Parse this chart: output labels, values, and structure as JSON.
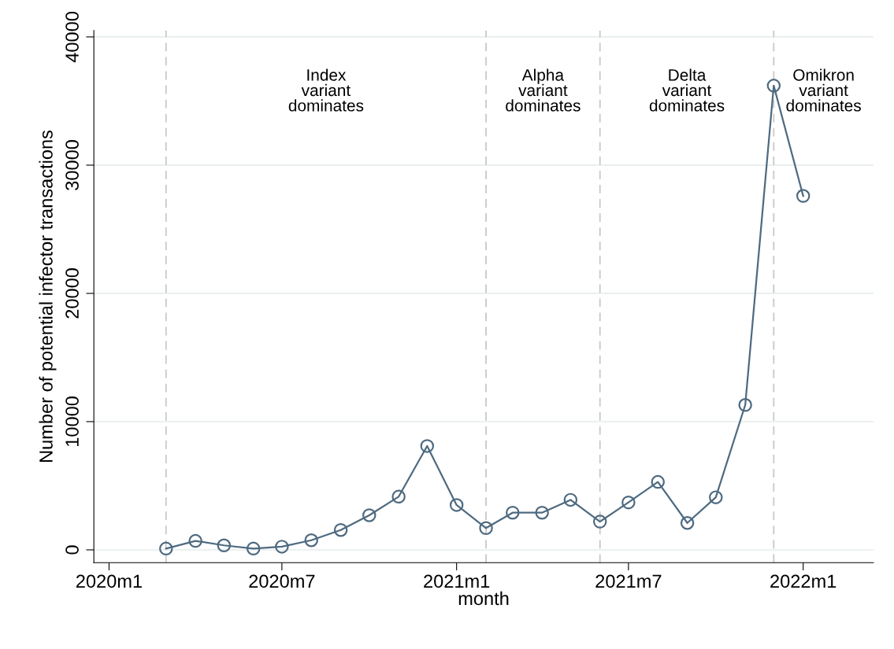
{
  "chart_data": {
    "type": "line",
    "xlabel": "month",
    "ylabel": "Number of potential infector transactions",
    "x": [
      "2020-03",
      "2020-04",
      "2020-05",
      "2020-06",
      "2020-07",
      "2020-08",
      "2020-09",
      "2020-10",
      "2020-11",
      "2020-12",
      "2021-01",
      "2021-02",
      "2021-03",
      "2021-04",
      "2021-05",
      "2021-06",
      "2021-07",
      "2021-08",
      "2021-09",
      "2021-10",
      "2021-11",
      "2021-12",
      "2022-01"
    ],
    "series": [
      {
        "color": "#4e6a80",
        "values": [
          100,
          700,
          350,
          100,
          250,
          750,
          1550,
          2700,
          4150,
          8100,
          3500,
          1700,
          2900,
          2900,
          3900,
          2200,
          3700,
          5300,
          2100,
          4100,
          11300,
          36200,
          27600
        ]
      }
    ],
    "xlim": [
      "2019-12-16",
      "2022-03-16"
    ],
    "xticks": [
      {
        "value": "2020-01",
        "label": "2020m1"
      },
      {
        "value": "2020-07",
        "label": "2020m7"
      },
      {
        "value": "2021-01",
        "label": "2021m1"
      },
      {
        "value": "2021-07",
        "label": "2021m7"
      },
      {
        "value": "2022-01",
        "label": "2022m1"
      }
    ],
    "ylim": [
      -1000,
      40500
    ],
    "yticks": [
      0,
      10000,
      20000,
      30000,
      40000
    ],
    "grid": "y",
    "marker": "circle",
    "line_style": "solid",
    "ref_lines": [
      {
        "axis": "x",
        "value": "2020-03",
        "color": "#c8c8c8",
        "line_style": "dashed"
      },
      {
        "axis": "x",
        "value": "2021-02",
        "color": "#c8c8c8",
        "line_style": "dashed"
      },
      {
        "axis": "x",
        "value": "2021-06",
        "color": "#c8c8c8",
        "line_style": "dashed"
      },
      {
        "axis": "x",
        "value": "2021-12",
        "color": "#c8c8c8",
        "line_style": "dashed"
      }
    ],
    "annotations": [
      "Index\nvariant\ndominates",
      "Alpha\nvariant\ndominates",
      "Delta\nvariant\ndominates",
      "Omikron\nvariant\ndominates"
    ]
  }
}
